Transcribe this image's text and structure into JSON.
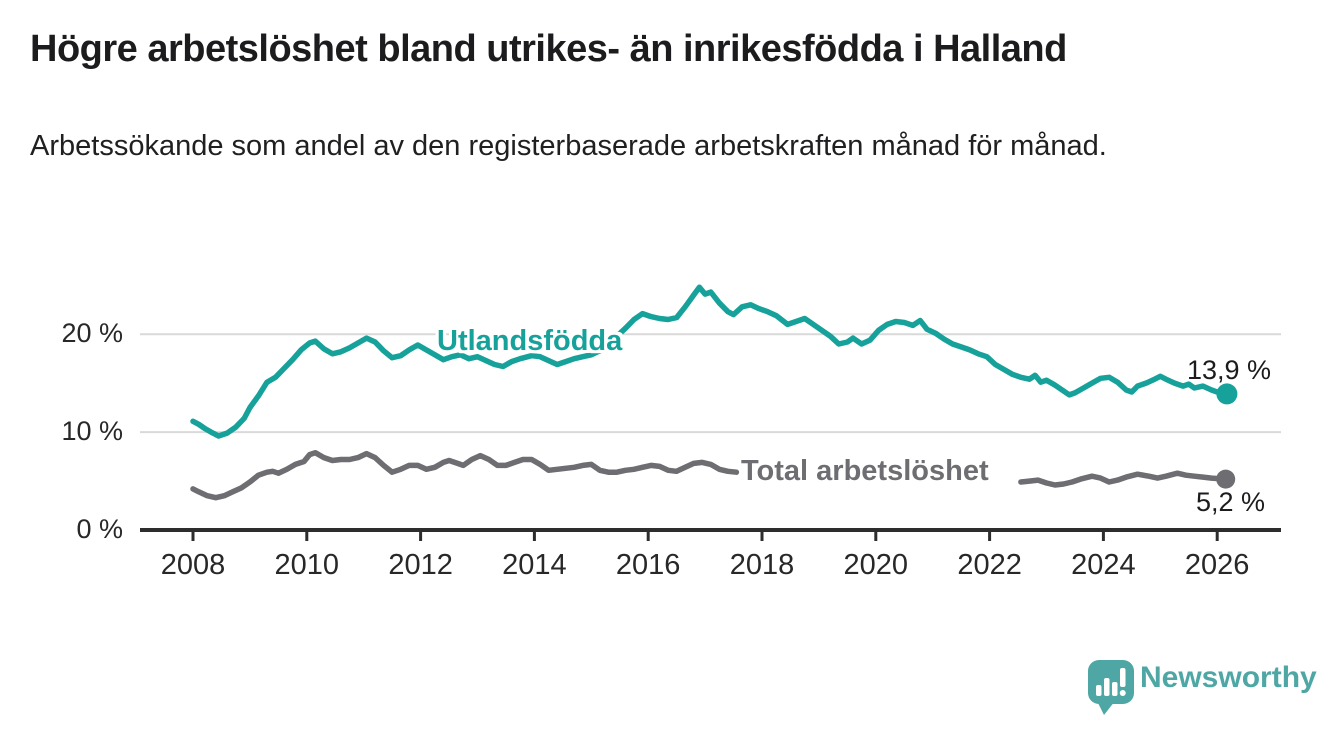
{
  "page": {
    "title": "Högre arbetslöshet bland utrikes- än inrikesfödda i Halland",
    "subtitle": "Arbetssökande som andel av den registerbaserade arbetskraften månad för månad."
  },
  "branding": {
    "name": "Newsworthy",
    "logo_icon": "bar-chart-speech-bubble-icon",
    "logo_color": "#4ea7a4"
  },
  "chart_data": {
    "type": "line",
    "title": "Högre arbetslöshet bland utrikes- än inrikesfödda i Halland",
    "xlabel": "",
    "ylabel": "",
    "xlim": [
      2007.1,
      2027.1
    ],
    "ylim": [
      0,
      26
    ],
    "grid": "horizontal-only",
    "grid_color": "#d9d9d9",
    "axis_color": "#2d2d2d",
    "x_ticks": [
      2008,
      2010,
      2012,
      2014,
      2016,
      2018,
      2020,
      2022,
      2024,
      2026
    ],
    "y_ticks": [
      {
        "value": 0,
        "label": "0 %"
      },
      {
        "value": 10,
        "label": "10 %"
      },
      {
        "value": 20,
        "label": "20 %"
      }
    ],
    "legend_position": "inline-labels",
    "series": [
      {
        "name": "Utlandsfödda",
        "color": "#16a29a",
        "end_label": "13,9 %",
        "end_value": 13.9,
        "points": [
          [
            2008.0,
            11.1
          ],
          [
            2008.1,
            10.8
          ],
          [
            2008.2,
            10.4
          ],
          [
            2008.35,
            9.9
          ],
          [
            2008.45,
            9.6
          ],
          [
            2008.6,
            9.9
          ],
          [
            2008.75,
            10.5
          ],
          [
            2008.9,
            11.4
          ],
          [
            2009.0,
            12.5
          ],
          [
            2009.15,
            13.7
          ],
          [
            2009.3,
            15.1
          ],
          [
            2009.45,
            15.6
          ],
          [
            2009.6,
            16.5
          ],
          [
            2009.75,
            17.4
          ],
          [
            2009.9,
            18.4
          ],
          [
            2010.05,
            19.1
          ],
          [
            2010.15,
            19.3
          ],
          [
            2010.3,
            18.5
          ],
          [
            2010.45,
            18.0
          ],
          [
            2010.6,
            18.2
          ],
          [
            2010.75,
            18.6
          ],
          [
            2010.9,
            19.1
          ],
          [
            2011.05,
            19.6
          ],
          [
            2011.2,
            19.2
          ],
          [
            2011.35,
            18.3
          ],
          [
            2011.5,
            17.6
          ],
          [
            2011.65,
            17.8
          ],
          [
            2011.8,
            18.4
          ],
          [
            2011.95,
            18.9
          ],
          [
            2012.1,
            18.4
          ],
          [
            2012.25,
            17.9
          ],
          [
            2012.4,
            17.4
          ],
          [
            2012.55,
            17.7
          ],
          [
            2012.7,
            17.9
          ],
          [
            2012.85,
            17.5
          ],
          [
            2013.0,
            17.7
          ],
          [
            2013.15,
            17.3
          ],
          [
            2013.3,
            16.9
          ],
          [
            2013.45,
            16.7
          ],
          [
            2013.6,
            17.2
          ],
          [
            2013.75,
            17.5
          ],
          [
            2013.95,
            17.8
          ],
          [
            2014.1,
            17.7
          ],
          [
            2014.25,
            17.3
          ],
          [
            2014.4,
            16.9
          ],
          [
            2014.55,
            17.2
          ],
          [
            2014.7,
            17.5
          ],
          [
            2014.85,
            17.7
          ],
          [
            2015.0,
            17.9
          ],
          [
            2015.15,
            18.3
          ],
          [
            2015.3,
            19.0
          ],
          [
            2015.45,
            19.8
          ],
          [
            2015.6,
            20.6
          ],
          [
            2015.75,
            21.5
          ],
          [
            2015.9,
            22.1
          ],
          [
            2016.05,
            21.8
          ],
          [
            2016.2,
            21.6
          ],
          [
            2016.35,
            21.5
          ],
          [
            2016.5,
            21.7
          ],
          [
            2016.65,
            22.8
          ],
          [
            2016.8,
            24.0
          ],
          [
            2016.9,
            24.8
          ],
          [
            2017.0,
            24.1
          ],
          [
            2017.1,
            24.3
          ],
          [
            2017.25,
            23.2
          ],
          [
            2017.4,
            22.3
          ],
          [
            2017.5,
            22.0
          ],
          [
            2017.65,
            22.8
          ],
          [
            2017.8,
            23.0
          ],
          [
            2017.95,
            22.6
          ],
          [
            2018.1,
            22.3
          ],
          [
            2018.25,
            21.9
          ],
          [
            2018.45,
            21.0
          ],
          [
            2018.6,
            21.3
          ],
          [
            2018.75,
            21.6
          ],
          [
            2018.9,
            21.0
          ],
          [
            2019.05,
            20.4
          ],
          [
            2019.2,
            19.8
          ],
          [
            2019.35,
            19.0
          ],
          [
            2019.5,
            19.2
          ],
          [
            2019.6,
            19.6
          ],
          [
            2019.75,
            19.0
          ],
          [
            2019.9,
            19.4
          ],
          [
            2020.05,
            20.4
          ],
          [
            2020.2,
            21.0
          ],
          [
            2020.35,
            21.3
          ],
          [
            2020.5,
            21.2
          ],
          [
            2020.65,
            20.9
          ],
          [
            2020.78,
            21.4
          ],
          [
            2020.9,
            20.5
          ],
          [
            2021.05,
            20.1
          ],
          [
            2021.2,
            19.5
          ],
          [
            2021.35,
            19.0
          ],
          [
            2021.5,
            18.7
          ],
          [
            2021.65,
            18.4
          ],
          [
            2021.8,
            18.0
          ],
          [
            2021.95,
            17.7
          ],
          [
            2022.1,
            16.9
          ],
          [
            2022.25,
            16.4
          ],
          [
            2022.4,
            15.9
          ],
          [
            2022.55,
            15.6
          ],
          [
            2022.7,
            15.4
          ],
          [
            2022.8,
            15.8
          ],
          [
            2022.9,
            15.1
          ],
          [
            2023.0,
            15.3
          ],
          [
            2023.15,
            14.8
          ],
          [
            2023.3,
            14.2
          ],
          [
            2023.4,
            13.8
          ],
          [
            2023.5,
            14.0
          ],
          [
            2023.65,
            14.5
          ],
          [
            2023.8,
            15.0
          ],
          [
            2023.95,
            15.5
          ],
          [
            2024.1,
            15.6
          ],
          [
            2024.25,
            15.1
          ],
          [
            2024.4,
            14.3
          ],
          [
            2024.5,
            14.1
          ],
          [
            2024.6,
            14.7
          ],
          [
            2024.75,
            15.0
          ],
          [
            2024.9,
            15.4
          ],
          [
            2025.0,
            15.7
          ],
          [
            2025.1,
            15.4
          ],
          [
            2025.25,
            15.0
          ],
          [
            2025.4,
            14.7
          ],
          [
            2025.5,
            14.9
          ],
          [
            2025.6,
            14.5
          ],
          [
            2025.75,
            14.7
          ],
          [
            2025.9,
            14.3
          ],
          [
            2026.0,
            14.1
          ],
          [
            2026.17,
            13.9
          ]
        ]
      },
      {
        "name": "Total arbetslöshet",
        "color": "#6d6d72",
        "end_label": "5,2 %",
        "end_value": 5.2,
        "points": [
          [
            2008.0,
            4.2
          ],
          [
            2008.1,
            3.9
          ],
          [
            2008.25,
            3.5
          ],
          [
            2008.4,
            3.3
          ],
          [
            2008.55,
            3.5
          ],
          [
            2008.7,
            3.9
          ],
          [
            2008.85,
            4.3
          ],
          [
            2009.0,
            4.9
          ],
          [
            2009.15,
            5.6
          ],
          [
            2009.3,
            5.9
          ],
          [
            2009.4,
            6.0
          ],
          [
            2009.5,
            5.8
          ],
          [
            2009.65,
            6.2
          ],
          [
            2009.8,
            6.7
          ],
          [
            2009.95,
            7.0
          ],
          [
            2010.05,
            7.7
          ],
          [
            2010.15,
            7.9
          ],
          [
            2010.3,
            7.4
          ],
          [
            2010.45,
            7.1
          ],
          [
            2010.6,
            7.2
          ],
          [
            2010.75,
            7.2
          ],
          [
            2010.9,
            7.4
          ],
          [
            2011.05,
            7.8
          ],
          [
            2011.2,
            7.4
          ],
          [
            2011.35,
            6.6
          ],
          [
            2011.5,
            5.9
          ],
          [
            2011.65,
            6.2
          ],
          [
            2011.8,
            6.6
          ],
          [
            2011.95,
            6.6
          ],
          [
            2012.1,
            6.2
          ],
          [
            2012.25,
            6.4
          ],
          [
            2012.4,
            6.9
          ],
          [
            2012.5,
            7.1
          ],
          [
            2012.65,
            6.8
          ],
          [
            2012.75,
            6.6
          ],
          [
            2012.9,
            7.2
          ],
          [
            2013.05,
            7.6
          ],
          [
            2013.2,
            7.2
          ],
          [
            2013.35,
            6.6
          ],
          [
            2013.5,
            6.6
          ],
          [
            2013.65,
            6.9
          ],
          [
            2013.8,
            7.2
          ],
          [
            2013.95,
            7.2
          ],
          [
            2014.1,
            6.7
          ],
          [
            2014.25,
            6.1
          ],
          [
            2014.4,
            6.2
          ],
          [
            2014.55,
            6.3
          ],
          [
            2014.7,
            6.4
          ],
          [
            2014.85,
            6.6
          ],
          [
            2015.0,
            6.7
          ],
          [
            2015.15,
            6.1
          ],
          [
            2015.3,
            5.9
          ],
          [
            2015.45,
            5.9
          ],
          [
            2015.6,
            6.1
          ],
          [
            2015.75,
            6.2
          ],
          [
            2015.9,
            6.4
          ],
          [
            2016.05,
            6.6
          ],
          [
            2016.2,
            6.5
          ],
          [
            2016.35,
            6.1
          ],
          [
            2016.5,
            6.0
          ],
          [
            2016.65,
            6.4
          ],
          [
            2016.8,
            6.8
          ],
          [
            2016.95,
            6.9
          ],
          [
            2017.1,
            6.7
          ],
          [
            2017.25,
            6.2
          ],
          [
            2017.4,
            6.0
          ],
          [
            2017.55,
            5.9
          ],
          null,
          [
            2022.55,
            4.9
          ],
          [
            2022.7,
            5.0
          ],
          [
            2022.85,
            5.1
          ],
          [
            2023.0,
            4.8
          ],
          [
            2023.15,
            4.6
          ],
          [
            2023.3,
            4.7
          ],
          [
            2023.45,
            4.9
          ],
          [
            2023.6,
            5.2
          ],
          [
            2023.8,
            5.5
          ],
          [
            2023.95,
            5.3
          ],
          [
            2024.1,
            4.9
          ],
          [
            2024.25,
            5.1
          ],
          [
            2024.4,
            5.4
          ],
          [
            2024.6,
            5.7
          ],
          [
            2024.8,
            5.5
          ],
          [
            2024.95,
            5.3
          ],
          [
            2025.1,
            5.5
          ],
          [
            2025.3,
            5.8
          ],
          [
            2025.45,
            5.6
          ],
          [
            2025.6,
            5.5
          ],
          [
            2025.75,
            5.4
          ],
          [
            2025.9,
            5.3
          ],
          [
            2026.15,
            5.2
          ]
        ]
      }
    ]
  }
}
